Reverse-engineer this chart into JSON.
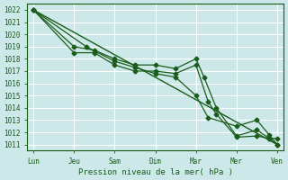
{
  "bg_color": "#cce8e8",
  "grid_color": "#ffffff",
  "line_color": "#1a5c1a",
  "xlabel": "Pression niveau de la mer( hPa )",
  "ylim": [
    1010.5,
    1022.5
  ],
  "yticks": [
    1011,
    1012,
    1013,
    1014,
    1015,
    1016,
    1017,
    1018,
    1019,
    1020,
    1021,
    1022
  ],
  "x_labels": [
    "Lun",
    "Jeu",
    "Sam",
    "Dim",
    "Mar",
    "Mer",
    "Ven"
  ],
  "x_positions": [
    0,
    1,
    2,
    3,
    4,
    5,
    6
  ],
  "series": [
    {
      "x": [
        0,
        1,
        1.5,
        2,
        2.5,
        3,
        3.5,
        4,
        4.2,
        4.5,
        5,
        5.5,
        5.8,
        6
      ],
      "y": [
        1022,
        1019.0,
        1018.7,
        1018.0,
        1017.5,
        1017.5,
        1017.2,
        1018.0,
        1016.5,
        1014.0,
        1011.7,
        1012.2,
        1011.5,
        1011.0
      ],
      "has_markers": true
    },
    {
      "x": [
        0,
        1,
        1.5,
        2,
        2.5,
        3,
        3.5,
        4,
        4.3,
        4.5,
        5,
        5.5,
        5.8,
        6
      ],
      "y": [
        1022,
        1018.5,
        1018.5,
        1017.5,
        1017.0,
        1017.0,
        1016.8,
        1017.5,
        1014.5,
        1013.5,
        1011.6,
        1011.7,
        1011.5,
        1011.5
      ],
      "has_markers": true
    },
    {
      "x": [
        0,
        1.3,
        2.0,
        2.5,
        3,
        3.5,
        4,
        4.3,
        5,
        5.5,
        5.8,
        6
      ],
      "y": [
        1022,
        1019.0,
        1017.8,
        1017.3,
        1016.8,
        1016.5,
        1015.0,
        1013.2,
        1012.5,
        1013.0,
        1011.8,
        1011.0
      ],
      "has_markers": true
    },
    {
      "x": [
        0,
        6
      ],
      "y": [
        1022,
        1011.0
      ],
      "has_markers": false
    }
  ]
}
